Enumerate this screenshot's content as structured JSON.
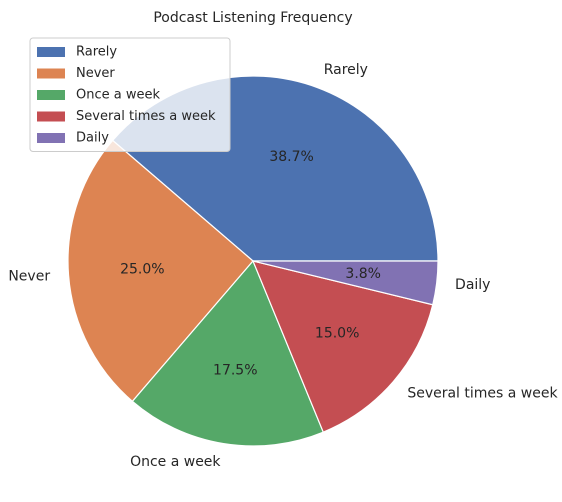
{
  "chart_data": {
    "type": "pie",
    "title": "Podcast Listening Frequency",
    "categories": [
      "Rarely",
      "Never",
      "Once a week",
      "Several times a week",
      "Daily"
    ],
    "values": [
      38.7,
      25.0,
      17.5,
      15.0,
      3.8
    ],
    "value_labels": [
      "38.7%",
      "25.0%",
      "17.5%",
      "15.0%",
      "3.8%"
    ],
    "colors": [
      "#4c72b0",
      "#dd8452",
      "#55a868",
      "#c44e52",
      "#8172b3"
    ],
    "legend": {
      "placement": "top-left",
      "entries": [
        "Rarely",
        "Never",
        "Once a week",
        "Several times a week",
        "Daily"
      ]
    }
  }
}
